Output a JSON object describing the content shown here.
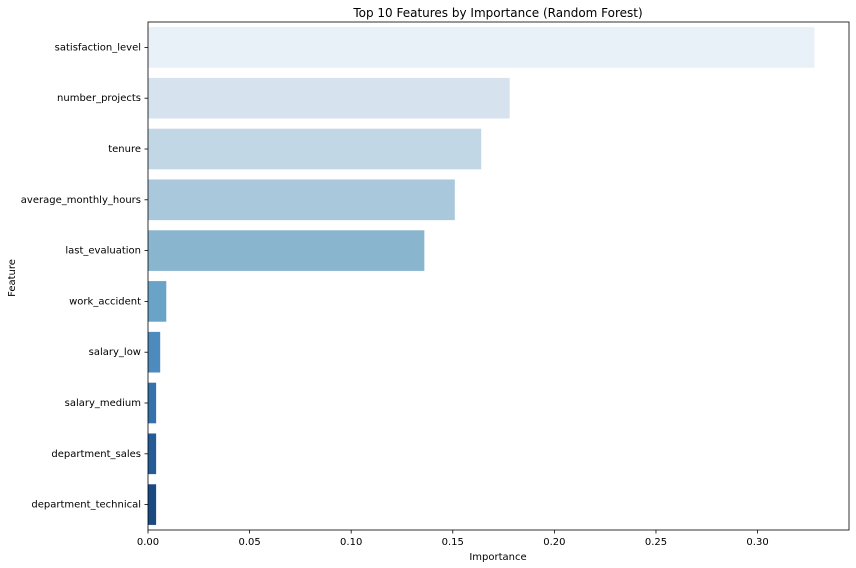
{
  "chart_data": {
    "type": "bar",
    "orientation": "horizontal",
    "title": "Top 10 Features by Importance (Random Forest)",
    "xlabel": "Importance",
    "ylabel": "Feature",
    "categories": [
      "satisfaction_level",
      "number_projects",
      "tenure",
      "average_monthly_hours",
      "last_evaluation",
      "work_accident",
      "salary_low",
      "salary_medium",
      "department_sales",
      "department_technical"
    ],
    "values": [
      0.328,
      0.178,
      0.164,
      0.151,
      0.136,
      0.009,
      0.006,
      0.004,
      0.004,
      0.004
    ],
    "xlim": [
      0,
      0.345
    ],
    "xticks": [
      0.0,
      0.05,
      0.1,
      0.15,
      0.2,
      0.25,
      0.3
    ],
    "xtick_labels": [
      "0.00",
      "0.05",
      "0.10",
      "0.15",
      "0.20",
      "0.25",
      "0.30"
    ],
    "colors": [
      "#e8f0f8",
      "#d6e3ef",
      "#c2d7e6",
      "#a9c8dc",
      "#89b5cf",
      "#6aa3c8",
      "#4d8abd",
      "#3571ab",
      "#245c98",
      "#1a4a82"
    ],
    "grid": false,
    "legend": "none"
  }
}
